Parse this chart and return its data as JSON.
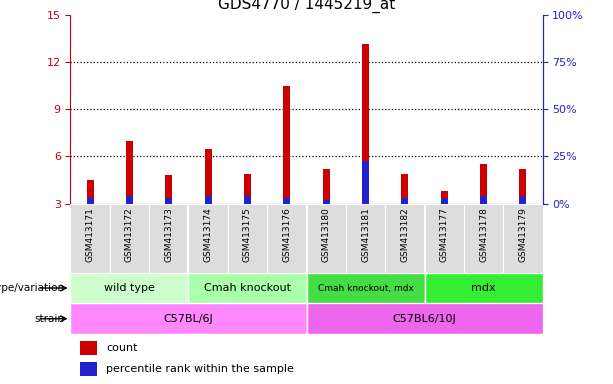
{
  "title": "GDS4770 / 1445219_at",
  "samples": [
    "GSM413171",
    "GSM413172",
    "GSM413173",
    "GSM413174",
    "GSM413175",
    "GSM413176",
    "GSM413180",
    "GSM413181",
    "GSM413182",
    "GSM413177",
    "GSM413178",
    "GSM413179"
  ],
  "count_values": [
    4.5,
    7.0,
    4.8,
    6.5,
    4.9,
    10.5,
    5.2,
    13.2,
    4.9,
    3.8,
    5.5,
    5.2
  ],
  "percentile_values": [
    3.35,
    3.5,
    3.35,
    3.5,
    3.5,
    3.35,
    3.25,
    5.7,
    3.35,
    3.35,
    3.5,
    3.5
  ],
  "ylim_min": 3,
  "ylim_max": 15,
  "yticks": [
    3,
    6,
    9,
    12,
    15
  ],
  "y2ticks": [
    0,
    25,
    50,
    75,
    100
  ],
  "y2labels": [
    "0%",
    "25%",
    "50%",
    "75%",
    "100%"
  ],
  "count_color": "#cc0000",
  "percentile_color": "#2222cc",
  "bar_width": 0.18,
  "geno_labels": [
    "wild type",
    "Cmah knockout",
    "Cmah knockout, mdx",
    "mdx"
  ],
  "geno_ranges": [
    [
      0,
      3
    ],
    [
      3,
      6
    ],
    [
      6,
      9
    ],
    [
      9,
      12
    ]
  ],
  "geno_colors": [
    "#ccffcc",
    "#aaffaa",
    "#44dd44",
    "#33ee33"
  ],
  "strain_labels": [
    "C57BL/6J",
    "C57BL6/10J"
  ],
  "strain_ranges": [
    [
      0,
      6
    ],
    [
      6,
      12
    ]
  ],
  "strain_colors": [
    "#ff88ff",
    "#ee66ee"
  ],
  "genotype_label": "genotype/variation",
  "strain_label": "strain",
  "legend_count": "count",
  "legend_percentile": "percentile rank within the sample",
  "title_fontsize": 11,
  "left_color": "#cc0000",
  "right_color": "#2222cc",
  "xticklabel_bg": "#dddddd"
}
